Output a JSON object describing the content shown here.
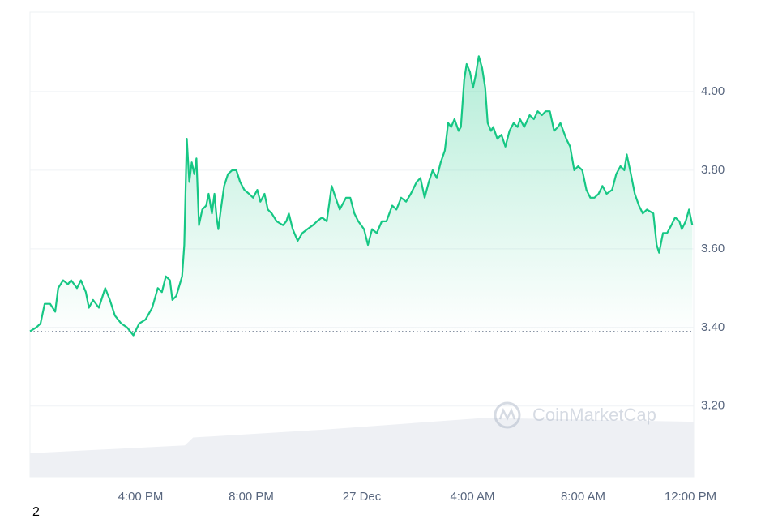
{
  "chart_data": {
    "type": "line",
    "x": [
      0,
      0.23,
      0.38,
      0.53,
      0.73,
      0.91,
      1.02,
      1.2,
      1.37,
      1.49,
      1.7,
      1.84,
      2.02,
      2.13,
      2.28,
      2.49,
      2.72,
      2.89,
      3.07,
      3.3,
      3.51,
      3.74,
      3.95,
      4.18,
      4.42,
      4.62,
      4.77,
      4.91,
      5.06,
      5.15,
      5.29,
      5.5,
      5.58,
      5.67,
      5.76,
      5.85,
      5.94,
      6.02,
      6.11,
      6.23,
      6.37,
      6.46,
      6.58,
      6.67,
      6.75,
      6.81,
      6.9,
      7.02,
      7.16,
      7.31,
      7.46,
      7.6,
      7.75,
      7.92,
      8.07,
      8.22,
      8.33,
      8.48,
      8.6,
      8.74,
      8.92,
      9.15,
      9.27,
      9.36,
      9.5,
      9.68,
      9.85,
      10.03,
      10.23,
      10.38,
      10.56,
      10.73,
      10.91,
      11.05,
      11.2,
      11.43,
      11.58,
      11.73,
      11.87,
      12.08,
      12.22,
      12.37,
      12.54,
      12.72,
      12.89,
      13.1,
      13.25,
      13.42,
      13.6,
      13.77,
      13.98,
      14.12,
      14.27,
      14.42,
      14.56,
      14.71,
      14.85,
      15,
      15.12,
      15.23,
      15.35,
      15.5,
      15.58,
      15.7,
      15.79,
      15.91,
      16.02,
      16.11,
      16.23,
      16.35,
      16.46,
      16.55,
      16.67,
      16.75,
      16.9,
      17.05,
      17.19,
      17.34,
      17.49,
      17.63,
      17.72,
      17.87,
      18.07,
      18.22,
      18.36,
      18.51,
      18.65,
      18.8,
      18.95,
      19.09,
      19.18,
      19.39,
      19.53,
      19.68,
      19.82,
      19.97,
      20.12,
      20.26,
      20.41,
      20.56,
      20.7,
      20.85,
      21.05,
      21.2,
      21.35,
      21.49,
      21.58,
      21.73,
      21.87,
      22.02,
      22.16,
      22.31,
      22.54,
      22.66,
      22.75,
      22.89,
      23.04,
      23.19,
      23.33,
      23.48,
      23.57,
      23.71,
      23.83,
      23.95
    ],
    "values": [
      3.39,
      3.4,
      3.41,
      3.46,
      3.46,
      3.44,
      3.5,
      3.52,
      3.51,
      3.52,
      3.5,
      3.52,
      3.49,
      3.45,
      3.47,
      3.45,
      3.5,
      3.47,
      3.43,
      3.41,
      3.4,
      3.38,
      3.41,
      3.42,
      3.45,
      3.5,
      3.49,
      3.53,
      3.52,
      3.47,
      3.48,
      3.53,
      3.61,
      3.88,
      3.77,
      3.82,
      3.79,
      3.83,
      3.66,
      3.7,
      3.71,
      3.74,
      3.69,
      3.74,
      3.68,
      3.65,
      3.7,
      3.76,
      3.79,
      3.8,
      3.8,
      3.77,
      3.75,
      3.74,
      3.73,
      3.75,
      3.72,
      3.74,
      3.7,
      3.69,
      3.67,
      3.66,
      3.67,
      3.69,
      3.65,
      3.62,
      3.64,
      3.65,
      3.66,
      3.67,
      3.68,
      3.67,
      3.76,
      3.73,
      3.7,
      3.73,
      3.73,
      3.69,
      3.67,
      3.65,
      3.61,
      3.65,
      3.64,
      3.67,
      3.67,
      3.71,
      3.7,
      3.73,
      3.72,
      3.74,
      3.77,
      3.78,
      3.73,
      3.77,
      3.8,
      3.78,
      3.82,
      3.85,
      3.92,
      3.91,
      3.93,
      3.9,
      3.91,
      4.03,
      4.07,
      4.05,
      4.01,
      4.04,
      4.09,
      4.06,
      4.01,
      3.92,
      3.9,
      3.91,
      3.88,
      3.89,
      3.86,
      3.9,
      3.92,
      3.91,
      3.93,
      3.91,
      3.94,
      3.93,
      3.95,
      3.94,
      3.95,
      3.95,
      3.9,
      3.91,
      3.92,
      3.88,
      3.86,
      3.8,
      3.81,
      3.8,
      3.75,
      3.73,
      3.73,
      3.74,
      3.76,
      3.74,
      3.75,
      3.79,
      3.81,
      3.8,
      3.84,
      3.79,
      3.74,
      3.71,
      3.69,
      3.7,
      3.69,
      3.61,
      3.59,
      3.64,
      3.64,
      3.66,
      3.68,
      3.67,
      3.65,
      3.67,
      3.7,
      3.66
    ],
    "color": "#16c784",
    "baseline": 3.39,
    "volume": {
      "x": [
        0,
        5.6,
        5.9,
        10.6,
        16.5,
        24
      ],
      "values": [
        3.08,
        3.1,
        3.12,
        3.14,
        3.17,
        3.16
      ],
      "color": "#eef0f4"
    },
    "xlim": [
      0,
      24
    ],
    "xticks": [
      {
        "value": 4,
        "label": "4:00 PM"
      },
      {
        "value": 8,
        "label": "8:00 PM"
      },
      {
        "value": 12,
        "label": "27 Dec"
      },
      {
        "value": 16,
        "label": "4:00 AM"
      },
      {
        "value": 20,
        "label": "8:00 AM"
      },
      {
        "value": 24,
        "label": "12:00 PM"
      }
    ],
    "ylim": [
      3.02,
      4.202
    ],
    "yticks": [
      {
        "value": 3.2,
        "label": "3.20"
      },
      {
        "value": 3.4,
        "label": "3.40"
      },
      {
        "value": 3.6,
        "label": "3.60"
      },
      {
        "value": 3.8,
        "label": "3.80"
      },
      {
        "value": 4,
        "label": "4.00"
      }
    ],
    "grid": true,
    "watermark": "CoinMarketCap",
    "footer": "2"
  }
}
